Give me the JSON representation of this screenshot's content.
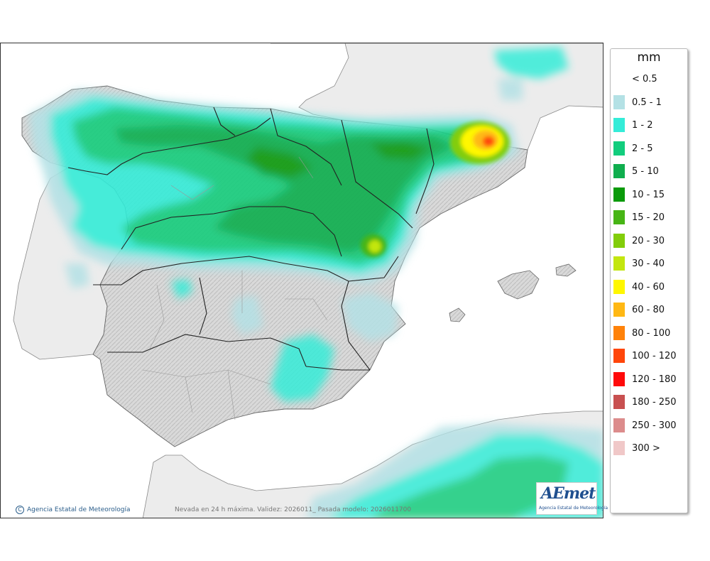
{
  "legend": {
    "unit": "mm",
    "items": [
      {
        "label": "< 0.5",
        "color": "#ffffff"
      },
      {
        "label": "0.5 - 1",
        "color": "#b4e1e5"
      },
      {
        "label": "1 - 2",
        "color": "#34ecd8"
      },
      {
        "label": "2 - 5",
        "color": "#12cd7d"
      },
      {
        "label": "5 - 10",
        "color": "#0fae4e"
      },
      {
        "label": "10 - 15",
        "color": "#0a9a0a"
      },
      {
        "label": "15 - 20",
        "color": "#47b515"
      },
      {
        "label": "20 - 30",
        "color": "#82cd0a"
      },
      {
        "label": "30 - 40",
        "color": "#c3e60f"
      },
      {
        "label": "40 - 60",
        "color": "#fff700"
      },
      {
        "label": "60 - 80",
        "color": "#ffb814"
      },
      {
        "label": "80 - 100",
        "color": "#ff820a"
      },
      {
        "label": "100 - 120",
        "color": "#ff460a"
      },
      {
        "label": "120 - 180",
        "color": "#ff0a0a"
      },
      {
        "label": "180 - 250",
        "color": "#c85050"
      },
      {
        "label": "250 - 300",
        "color": "#dc8c8c"
      },
      {
        "label": "300 >",
        "color": "#f0c8c8"
      }
    ]
  },
  "footer": {
    "credit": "Agencia Estatal de Meteorología",
    "caption": "Nevada en 24 h máxima. Validez: 2026011_ Pasada modelo: 2026011700"
  },
  "logo": {
    "mark": "AEmet",
    "subtitle": "Agencia Estatal de Meteorología"
  }
}
